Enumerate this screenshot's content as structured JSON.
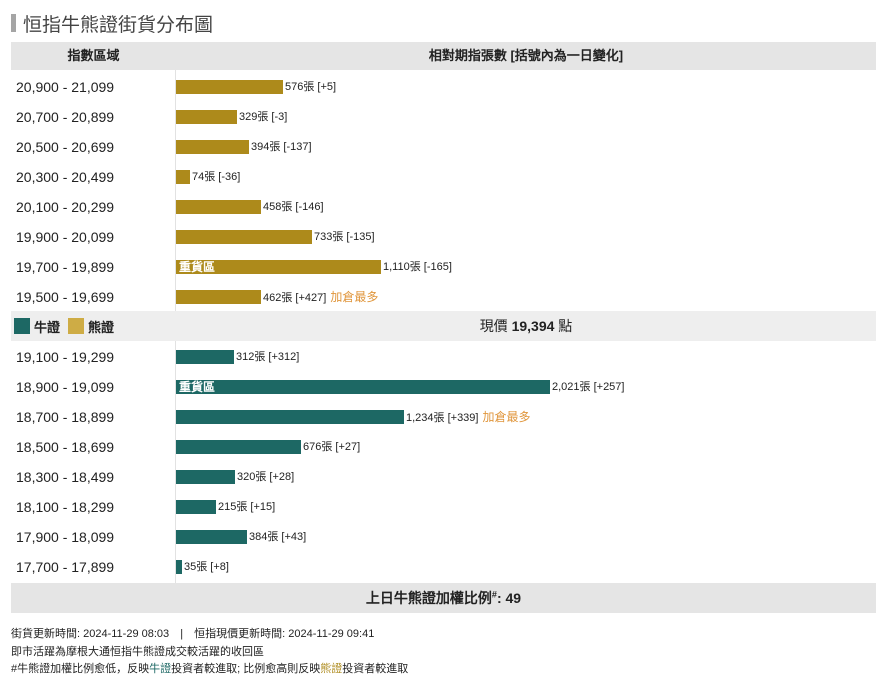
{
  "title": "恒指牛熊證街貨分布圖",
  "header": {
    "col_range": "指數區域",
    "col_count": "相對期指張數 [括號內為一日變化]"
  },
  "colors": {
    "bear": "#ad8a1b",
    "bull": "#1d6864",
    "bear_legend": "#ceac45",
    "most_added": "#e0963c"
  },
  "legend": {
    "bull": "牛證",
    "bear": "熊證"
  },
  "current_price": {
    "prefix": "現價",
    "value": "19,394",
    "unit": "點"
  },
  "heavy_label": "重貨區",
  "most_added_label": "加倉最多",
  "chart_data": {
    "type": "bar",
    "orientation": "horizontal",
    "title": "恒指牛熊證街貨分布圖",
    "xlabel": "相對期指張數 [括號內為一日變化]",
    "ylabel": "指數區域",
    "series": [
      {
        "name": "熊證",
        "categories": [
          "20,900 - 21,099",
          "20,700 - 20,899",
          "20,500 - 20,699",
          "20,300 - 20,499",
          "20,100 - 20,299",
          "19,900 - 20,099",
          "19,700 - 19,899",
          "19,500 - 19,699"
        ],
        "values": [
          576,
          329,
          394,
          74,
          458,
          733,
          1110,
          462
        ],
        "value_labels": [
          "576",
          "329",
          "394",
          "74",
          "458",
          "733",
          "1,110",
          "462"
        ],
        "changes": [
          "+5",
          "-3",
          "-137",
          "-36",
          "-146",
          "-135",
          "-165",
          "+427"
        ],
        "heavy_index": 6,
        "most_added_index": 7
      },
      {
        "name": "牛證",
        "categories": [
          "19,100 - 19,299",
          "18,900 - 19,099",
          "18,700 - 18,899",
          "18,500 - 18,699",
          "18,300 - 18,499",
          "18,100 - 18,299",
          "17,900 - 18,099",
          "17,700 - 17,899"
        ],
        "values": [
          312,
          2021,
          1234,
          676,
          320,
          215,
          384,
          35
        ],
        "value_labels": [
          "312",
          "2,021",
          "1,234",
          "676",
          "320",
          "215",
          "384",
          "35"
        ],
        "changes": [
          "+312",
          "+257",
          "+339",
          "+27",
          "+28",
          "+15",
          "+43",
          "+8"
        ],
        "heavy_index": 1,
        "most_added_index": 2
      }
    ],
    "unit": "張",
    "current_price": 19394
  },
  "ratio": {
    "label": "上日牛熊證加權比例",
    "marker": "#",
    "value": "49"
  },
  "footer": {
    "update_time_label": "街貨更新時間:",
    "update_time": "2024-11-29 08:03",
    "separator": "|",
    "price_time_label": "恒指現價更新時間:",
    "price_time": "2024-11-29 09:41",
    "note1": "即市活躍為摩根大通恒指牛熊證成交較活躍的收回區",
    "note2_a": "#牛熊證加權比例愈低，反映",
    "note2_bull": "牛證",
    "note2_b": "投資者較進取; 比例愈高則反映",
    "note2_bear": "熊證",
    "note2_c": "投資者較進取"
  }
}
